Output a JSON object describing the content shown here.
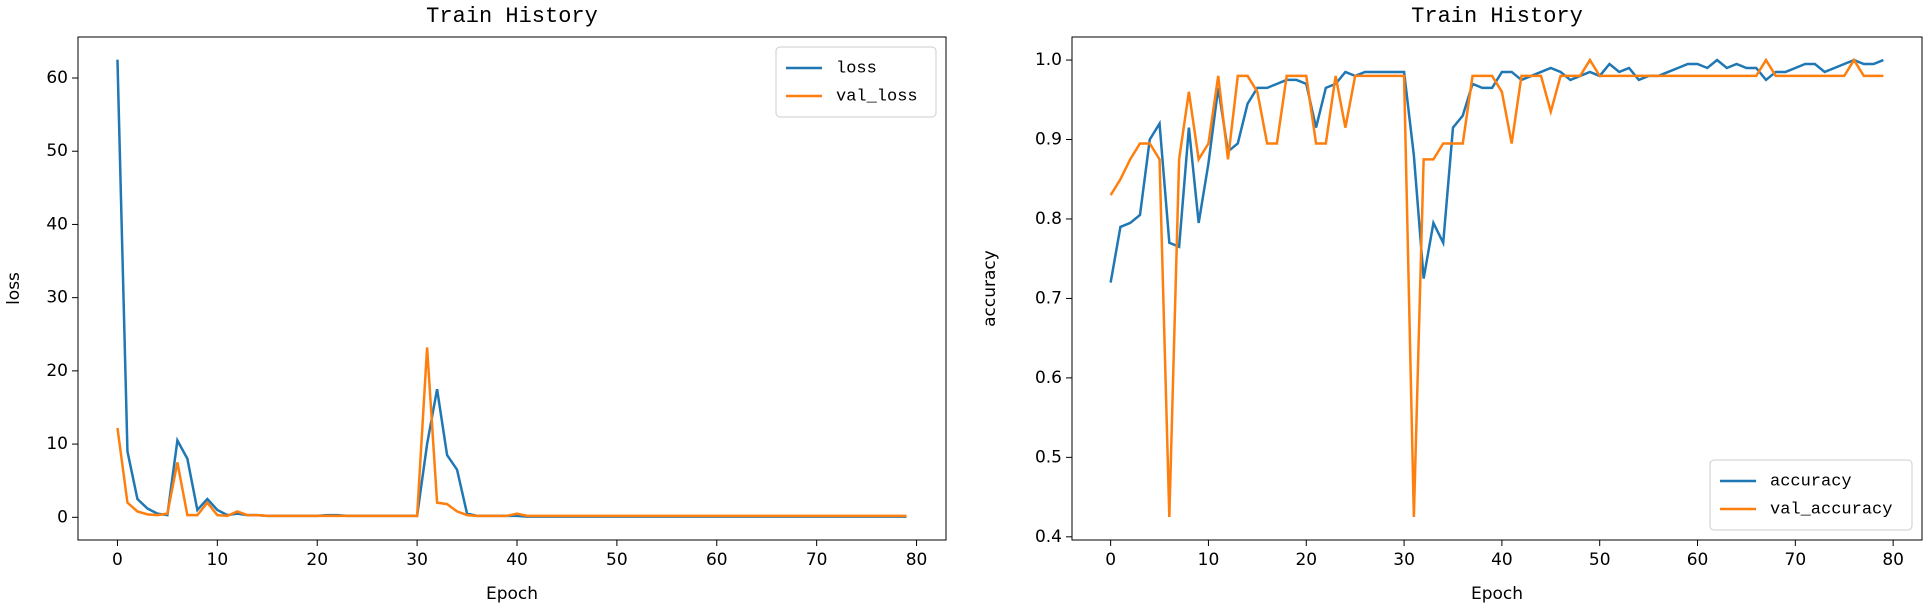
{
  "chart_data": [
    {
      "type": "line",
      "title": "Train History",
      "xlabel": "Epoch",
      "ylabel": "loss",
      "x": [
        0,
        1,
        2,
        3,
        4,
        5,
        6,
        7,
        8,
        9,
        10,
        11,
        12,
        13,
        14,
        15,
        16,
        17,
        18,
        19,
        20,
        21,
        22,
        23,
        24,
        25,
        26,
        27,
        28,
        29,
        30,
        31,
        32,
        33,
        34,
        35,
        36,
        37,
        38,
        39,
        40,
        41,
        42,
        43,
        44,
        45,
        46,
        47,
        48,
        49,
        50,
        51,
        52,
        53,
        54,
        55,
        56,
        57,
        58,
        59,
        60,
        61,
        62,
        63,
        64,
        65,
        66,
        67,
        68,
        69,
        70,
        71,
        72,
        73,
        74,
        75,
        76,
        77,
        78,
        79
      ],
      "series": [
        {
          "name": "loss",
          "color": "#1f77b4",
          "values": [
            62.5,
            9,
            2.5,
            1.2,
            0.5,
            0.3,
            10.5,
            8,
            1,
            2.5,
            1,
            0.3,
            0.5,
            0.3,
            0.3,
            0.2,
            0.2,
            0.2,
            0.2,
            0.2,
            0.2,
            0.3,
            0.3,
            0.2,
            0.2,
            0.2,
            0.2,
            0.2,
            0.2,
            0.2,
            0.2,
            10,
            17.5,
            8.5,
            6.5,
            0.5,
            0.2,
            0.2,
            0.2,
            0.2,
            0.2,
            0.1,
            0.1,
            0.1,
            0.1,
            0.1,
            0.1,
            0.1,
            0.1,
            0.1,
            0.1,
            0.1,
            0.1,
            0.1,
            0.1,
            0.1,
            0.1,
            0.1,
            0.1,
            0.1,
            0.1,
            0.1,
            0.1,
            0.1,
            0.1,
            0.1,
            0.1,
            0.1,
            0.1,
            0.1,
            0.1,
            0.1,
            0.1,
            0.1,
            0.1,
            0.1,
            0.1,
            0.1,
            0.1,
            0.1
          ]
        },
        {
          "name": "val_loss",
          "color": "#ff7f0e",
          "values": [
            12.2,
            2,
            0.8,
            0.4,
            0.3,
            0.5,
            7.5,
            0.3,
            0.3,
            2,
            0.3,
            0.2,
            0.8,
            0.3,
            0.3,
            0.2,
            0.2,
            0.2,
            0.2,
            0.2,
            0.2,
            0.2,
            0.2,
            0.2,
            0.2,
            0.2,
            0.2,
            0.2,
            0.2,
            0.2,
            0.2,
            23.2,
            2,
            1.8,
            0.8,
            0.3,
            0.2,
            0.2,
            0.2,
            0.2,
            0.5,
            0.2,
            0.2,
            0.2,
            0.2,
            0.2,
            0.2,
            0.2,
            0.2,
            0.2,
            0.2,
            0.2,
            0.2,
            0.2,
            0.2,
            0.2,
            0.2,
            0.2,
            0.2,
            0.2,
            0.2,
            0.2,
            0.2,
            0.2,
            0.2,
            0.2,
            0.2,
            0.2,
            0.2,
            0.2,
            0.2,
            0.2,
            0.2,
            0.2,
            0.2,
            0.2,
            0.2,
            0.2,
            0.2,
            0.2
          ]
        }
      ],
      "xlim": [
        -3.95,
        82.95
      ],
      "xticks": [
        0,
        10,
        20,
        30,
        40,
        50,
        60,
        70,
        80
      ],
      "ylim": [
        -3.1,
        65.6
      ],
      "yticks": [
        0,
        10,
        20,
        30,
        40,
        50,
        60
      ],
      "legend": "upper right"
    },
    {
      "type": "line",
      "title": "Train History",
      "xlabel": "Epoch",
      "ylabel": "accuracy",
      "x": [
        0,
        1,
        2,
        3,
        4,
        5,
        6,
        7,
        8,
        9,
        10,
        11,
        12,
        13,
        14,
        15,
        16,
        17,
        18,
        19,
        20,
        21,
        22,
        23,
        24,
        25,
        26,
        27,
        28,
        29,
        30,
        31,
        32,
        33,
        34,
        35,
        36,
        37,
        38,
        39,
        40,
        41,
        42,
        43,
        44,
        45,
        46,
        47,
        48,
        49,
        50,
        51,
        52,
        53,
        54,
        55,
        56,
        57,
        58,
        59,
        60,
        61,
        62,
        63,
        64,
        65,
        66,
        67,
        68,
        69,
        70,
        71,
        72,
        73,
        74,
        75,
        76,
        77,
        78,
        79
      ],
      "series": [
        {
          "name": "accuracy",
          "color": "#1f77b4",
          "values": [
            0.72,
            0.79,
            0.795,
            0.805,
            0.9,
            0.92,
            0.77,
            0.765,
            0.915,
            0.795,
            0.87,
            0.965,
            0.885,
            0.895,
            0.945,
            0.965,
            0.965,
            0.97,
            0.975,
            0.975,
            0.97,
            0.915,
            0.965,
            0.97,
            0.985,
            0.98,
            0.985,
            0.985,
            0.985,
            0.985,
            0.985,
            0.88,
            0.725,
            0.795,
            0.77,
            0.915,
            0.93,
            0.97,
            0.965,
            0.965,
            0.985,
            0.985,
            0.975,
            0.98,
            0.985,
            0.99,
            0.985,
            0.975,
            0.98,
            0.985,
            0.98,
            0.995,
            0.985,
            0.99,
            0.975,
            0.98,
            0.98,
            0.985,
            0.99,
            0.995,
            0.995,
            0.99,
            1.0,
            0.99,
            0.995,
            0.99,
            0.99,
            0.975,
            0.985,
            0.985,
            0.99,
            0.995,
            0.995,
            0.985,
            0.99,
            0.995,
            1.0,
            0.995,
            0.995,
            1.0
          ]
        },
        {
          "name": "val_accuracy",
          "color": "#ff7f0e",
          "values": [
            0.83,
            0.85,
            0.875,
            0.895,
            0.895,
            0.875,
            0.425,
            0.875,
            0.96,
            0.875,
            0.895,
            0.98,
            0.875,
            0.98,
            0.98,
            0.96,
            0.895,
            0.895,
            0.98,
            0.98,
            0.98,
            0.895,
            0.895,
            0.98,
            0.915,
            0.98,
            0.98,
            0.98,
            0.98,
            0.98,
            0.98,
            0.425,
            0.875,
            0.875,
            0.895,
            0.895,
            0.895,
            0.98,
            0.98,
            0.98,
            0.96,
            0.895,
            0.98,
            0.98,
            0.98,
            0.935,
            0.98,
            0.98,
            0.98,
            1.0,
            0.98,
            0.98,
            0.98,
            0.98,
            0.98,
            0.98,
            0.98,
            0.98,
            0.98,
            0.98,
            0.98,
            0.98,
            0.98,
            0.98,
            0.98,
            0.98,
            0.98,
            1.0,
            0.98,
            0.98,
            0.98,
            0.98,
            0.98,
            0.98,
            0.98,
            0.98,
            1.0,
            0.98,
            0.98,
            0.98
          ]
        }
      ],
      "xlim": [
        -3.95,
        82.95
      ],
      "xticks": [
        0,
        10,
        20,
        30,
        40,
        50,
        60,
        70,
        80
      ],
      "ylim": [
        0.396,
        1.029
      ],
      "yticks": [
        0.4,
        0.5,
        0.6,
        0.7,
        0.8,
        0.9,
        {
          "value": 1,
          "label": "1.0"
        }
      ],
      "legend": "lower right"
    }
  ]
}
